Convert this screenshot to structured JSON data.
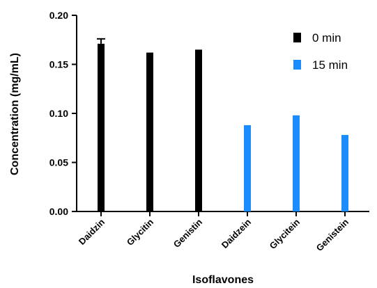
{
  "chart_data": {
    "type": "bar",
    "xlabel": "Isoflavones",
    "ylabel": "Concentration (mg/mL)",
    "ylim": [
      0,
      0.2
    ],
    "yticks": [
      "0.00",
      "0.05",
      "0.10",
      "0.15",
      "0.20"
    ],
    "categories": [
      "Daidzin",
      "Glycitin",
      "Genistin",
      "Daidzein",
      "Glycitein",
      "Genistein"
    ],
    "series": [
      {
        "name": "0 min",
        "color": "#000000",
        "values": [
          0.171,
          0.162,
          0.165,
          null,
          null,
          null
        ],
        "errors": [
          0.005,
          null,
          null,
          null,
          null,
          null
        ]
      },
      {
        "name": "15 min",
        "color": "#1a8cff",
        "values": [
          null,
          null,
          null,
          0.088,
          0.098,
          0.078
        ],
        "errors": [
          null,
          null,
          null,
          null,
          null,
          null
        ]
      }
    ],
    "legend": "top-right",
    "grid": false
  }
}
